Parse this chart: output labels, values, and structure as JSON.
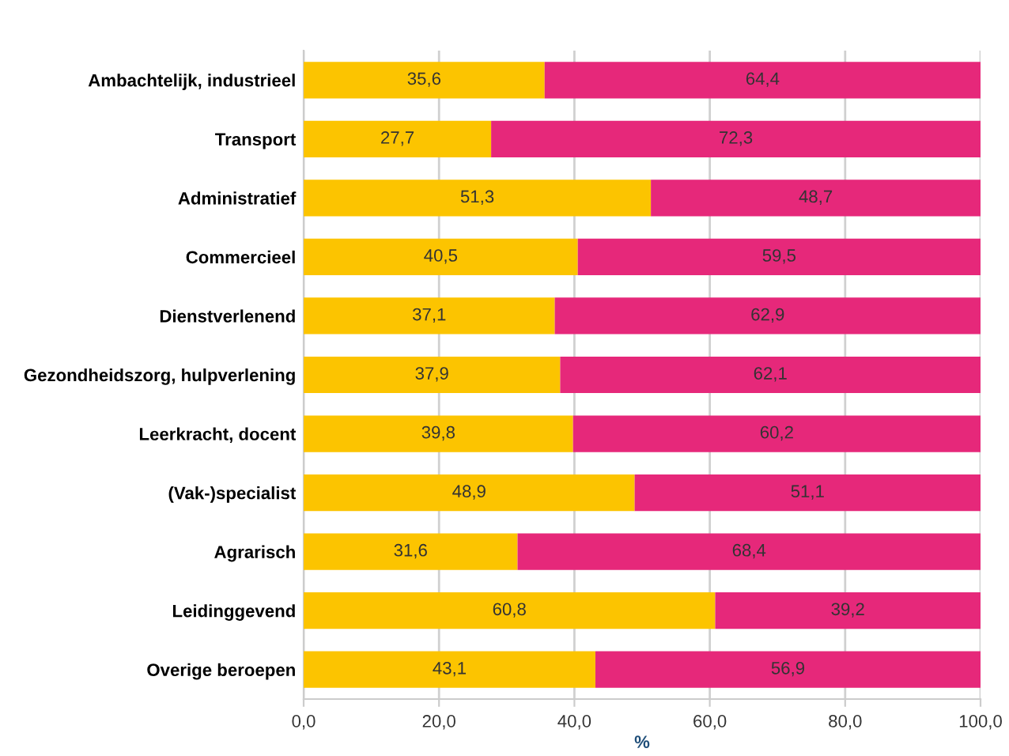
{
  "chart_data": {
    "type": "bar",
    "orientation": "horizontal",
    "stacked": true,
    "xlabel": "%",
    "categories": [
      "Ambachtelijk, industrieel",
      "Transport",
      "Administratief",
      "Commercieel",
      "Dienstverlenend",
      "Gezondheidszorg, hulpverlening",
      "Leerkracht, docent",
      "(Vak-)specialist",
      "Agrarisch",
      "Leidinggevend",
      "Overige beroepen"
    ],
    "series": [
      {
        "color": "#fcc400",
        "values": [
          35.6,
          27.7,
          51.3,
          40.5,
          37.1,
          37.9,
          39.8,
          48.9,
          31.6,
          60.8,
          43.1
        ],
        "value_labels": [
          "35,6",
          "27,7",
          "51,3",
          "40,5",
          "37,1",
          "37,9",
          "39,8",
          "48,9",
          "31,6",
          "60,8",
          "43,1"
        ]
      },
      {
        "color": "#e6287a",
        "values": [
          64.4,
          72.3,
          48.7,
          59.5,
          62.9,
          62.1,
          60.2,
          51.1,
          68.4,
          39.2,
          56.9
        ],
        "value_labels": [
          "64,4",
          "72,3",
          "48,7",
          "59,5",
          "62,9",
          "62,1",
          "60,2",
          "51,1",
          "68,4",
          "39,2",
          "56,9"
        ]
      }
    ],
    "xlim": [
      0,
      100
    ],
    "xticks": [
      {
        "value": 0,
        "label": "0,0"
      },
      {
        "value": 20,
        "label": "20,0"
      },
      {
        "value": 40,
        "label": "40,0"
      },
      {
        "value": 60,
        "label": "60,0"
      },
      {
        "value": 80,
        "label": "80,0"
      },
      {
        "value": 100,
        "label": "100,0"
      }
    ],
    "grid": "x"
  }
}
